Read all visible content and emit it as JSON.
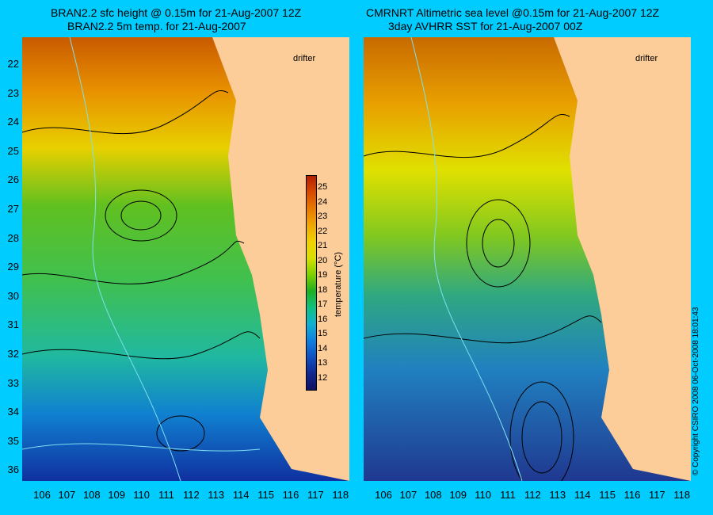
{
  "left_panel": {
    "title_line1": "BRAN2.2 sfc height @ 0.15m for 21-Aug-2007 12Z",
    "title_line2": "BRAN2.2 5m temp. for 21-Aug-2007",
    "drifter_label": "drifter"
  },
  "right_panel": {
    "title_line1": "CMRNRT Altimetric sea level  @0.15m  for 21-Aug-2007 12Z",
    "title_line2": "3day AVHRR SST for 21-Aug-2007 00Z",
    "drifter_label": "drifter"
  },
  "latitude_labels": [
    "22",
    "23",
    "24",
    "25",
    "26",
    "27",
    "28",
    "29",
    "30",
    "31",
    "32",
    "33",
    "34",
    "35",
    "36"
  ],
  "longitude_labels": [
    "106",
    "107",
    "108",
    "109",
    "110",
    "111",
    "112",
    "113",
    "114",
    "115",
    "116",
    "117",
    "118"
  ],
  "colorbar": {
    "ticks": [
      "25",
      "24",
      "23",
      "22",
      "21",
      "20",
      "19",
      "18",
      "17",
      "16",
      "15",
      "14",
      "13",
      "12"
    ],
    "unit_label": "temperature (°C)",
    "colors": [
      "#b22000",
      "#d84a00",
      "#e87a00",
      "#f0a800",
      "#f0d000",
      "#d8e000",
      "#80d000",
      "#20b020",
      "#10c080",
      "#10b0d0",
      "#1080e0",
      "#1050c0",
      "#102890",
      "#101060"
    ]
  },
  "copyright": "© Copyright CSIRO 2008   06-Oct-2008 18:01:43"
}
